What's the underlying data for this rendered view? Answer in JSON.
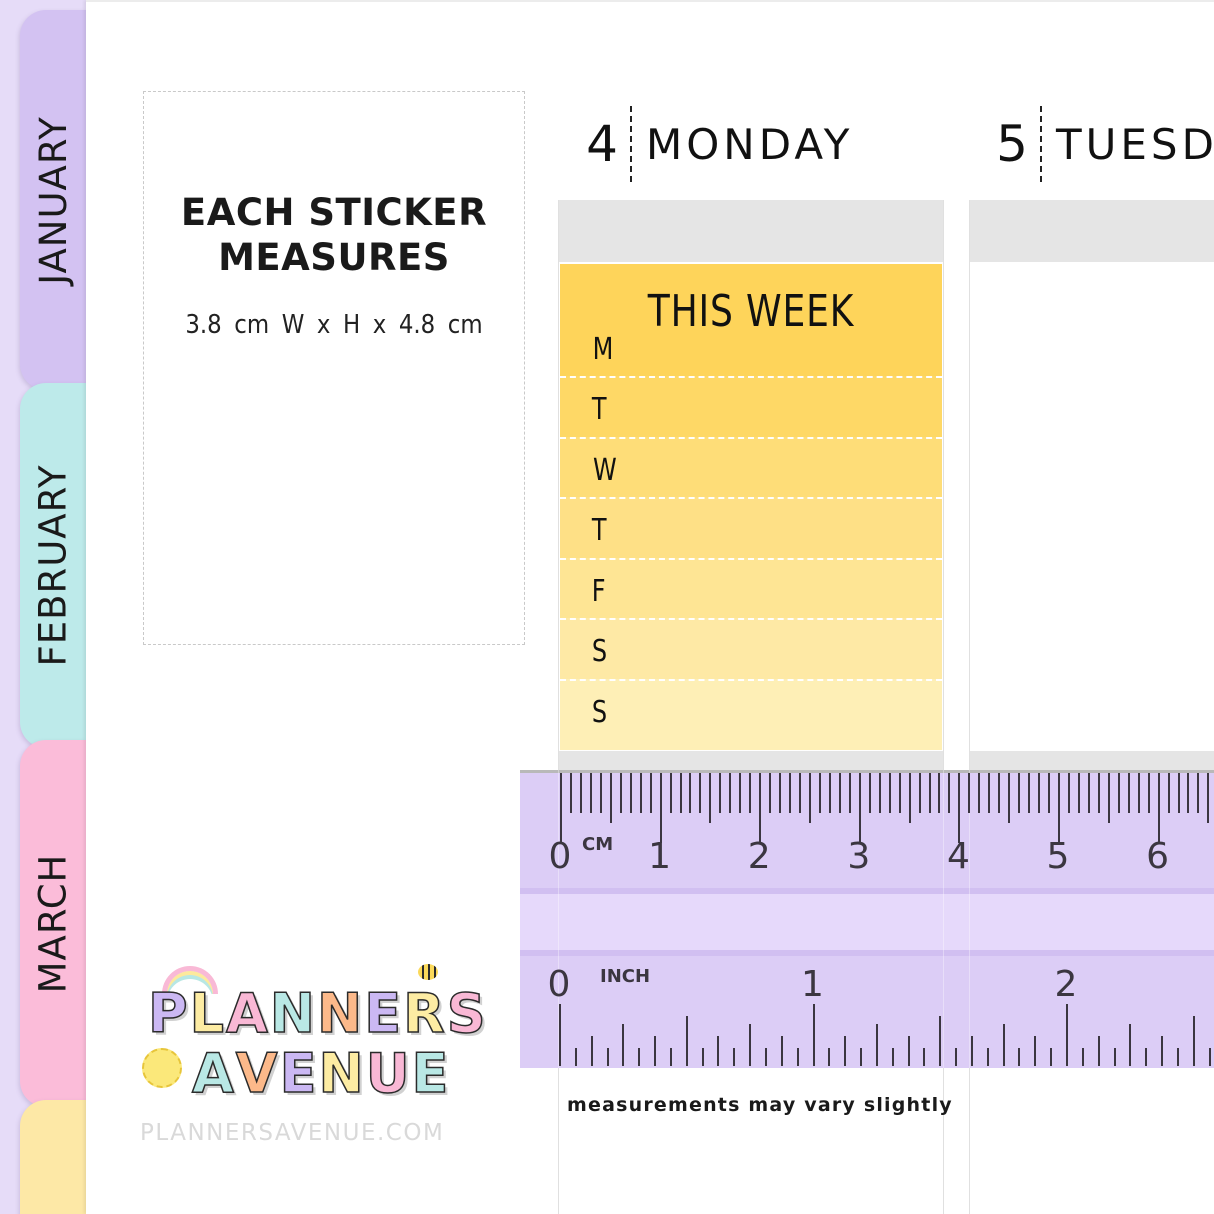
{
  "sidebar": {
    "tabs": [
      {
        "label": "JANUARY",
        "color": "#d3c2f2"
      },
      {
        "label": "FEBRUARY",
        "color": "#bdeaea"
      },
      {
        "label": "MARCH",
        "color": "#fbbcd9"
      },
      {
        "label": "",
        "color": "#fde8a6"
      }
    ]
  },
  "measure": {
    "title_line1": "EACH STICKER",
    "title_line2": "MEASURES",
    "dimensions": "3.8 cm W  x  H x 4.8 cm"
  },
  "days": [
    {
      "number": "4",
      "name": "MONDAY"
    },
    {
      "number": "5",
      "name": "TUESD"
    }
  ],
  "sticker": {
    "title": "THIS WEEK",
    "rows": [
      "M",
      "T",
      "W",
      "T",
      "F",
      "S",
      "S"
    ],
    "colors": [
      "#fed45a",
      "#fed866",
      "#fedd78",
      "#fee086",
      "#fee594",
      "#fee9a5",
      "#feefb6"
    ]
  },
  "ruler": {
    "cm_unit": "CM",
    "cm_labels": [
      "0",
      "1",
      "2",
      "3",
      "4",
      "5",
      "6"
    ],
    "inch_unit": "INCH",
    "inch_labels": [
      "0",
      "1",
      "2"
    ]
  },
  "footnote": "measurements may vary slightly",
  "logo": {
    "line1": [
      "P",
      "L",
      "A",
      "N",
      "N",
      "E",
      "R",
      "S"
    ],
    "line2": [
      "A",
      "V",
      "E",
      "N",
      "U",
      "E"
    ],
    "line1_colors": [
      "#cbb8f3",
      "#fdeca3",
      "#f9b8d5",
      "#b9e8e5",
      "#fcb98a",
      "#cbb8f3",
      "#fdeca3",
      "#f9b8d5"
    ],
    "line2_colors": [
      "#b9e8e5",
      "#fcb98a",
      "#cbb8f3",
      "#fdeca3",
      "#f9b8d5",
      "#b9e8e5"
    ]
  },
  "website": "PLANNERSAVENUE.COM"
}
